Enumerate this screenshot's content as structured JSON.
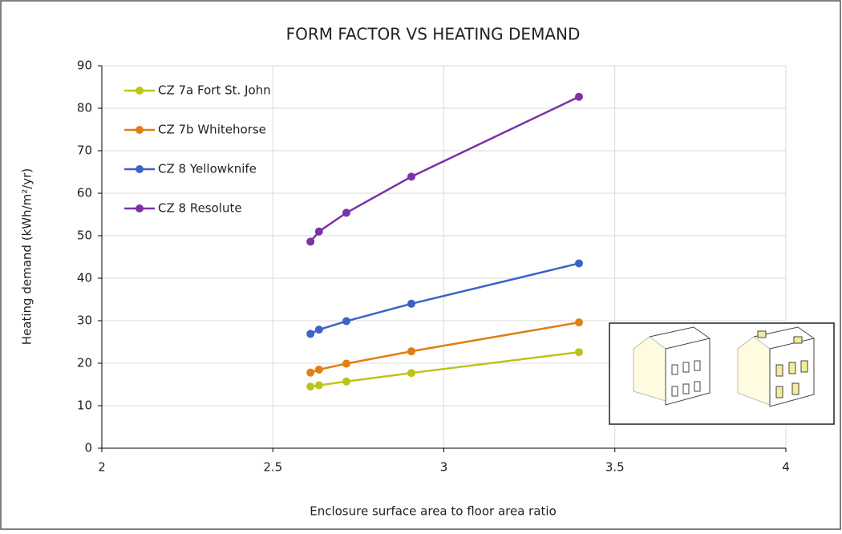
{
  "chart_data": {
    "type": "line",
    "title": "FORM FACTOR VS HEATING DEMAND",
    "x_label": "Enclosure surface area to floor area ratio",
    "y_label": "Heating demand (kWh/m²/yr)",
    "x": [
      2.61,
      2.635,
      2.715,
      2.905,
      3.395
    ],
    "series": [
      {
        "name": "CZ 7a Fort St. John",
        "color": "#bcc41c",
        "values": [
          14.5,
          14.8,
          15.7,
          17.7,
          22.6
        ]
      },
      {
        "name": "CZ 7b Whitehorse",
        "color": "#e07f12",
        "values": [
          17.8,
          18.5,
          19.9,
          22.8,
          29.6
        ]
      },
      {
        "name": "CZ 8 Yellowknife",
        "color": "#3d62c8",
        "values": [
          26.9,
          27.9,
          29.9,
          34.0,
          43.5
        ]
      },
      {
        "name": "CZ 8 Resolute",
        "color": "#7a32a8",
        "values": [
          48.6,
          51.0,
          55.4,
          63.9,
          82.7
        ]
      }
    ],
    "xlim": [
      2,
      4
    ],
    "xticks": [
      2,
      2.5,
      3,
      3.5,
      4
    ],
    "ylim": [
      0,
      90
    ],
    "yticks": [
      0,
      10,
      20,
      30,
      40,
      50,
      60,
      70,
      80,
      90
    ],
    "grid": true,
    "legend": "top-left"
  }
}
